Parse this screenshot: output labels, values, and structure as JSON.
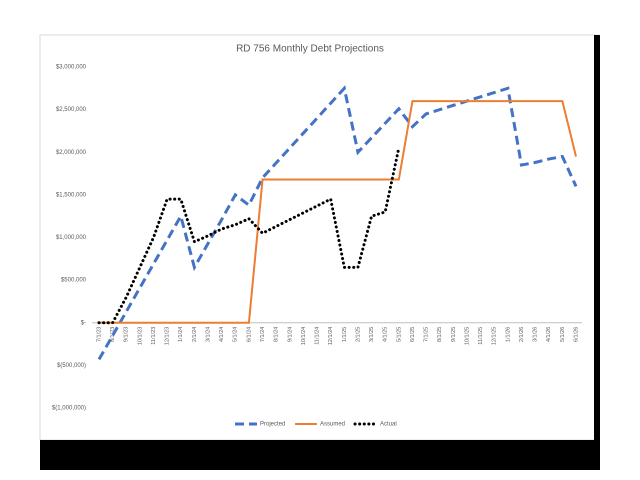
{
  "chart_data": {
    "type": "line",
    "title": "RD 756 Monthly Debt Projections",
    "categories": [
      "7/1/23",
      "8/1/23",
      "9/1/23",
      "10/1/23",
      "11/1/23",
      "12/1/23",
      "1/1/24",
      "2/1/24",
      "3/1/24",
      "4/1/24",
      "5/1/24",
      "6/1/24",
      "7/1/24",
      "8/1/24",
      "9/1/24",
      "10/1/24",
      "11/1/24",
      "12/1/24",
      "1/1/25",
      "2/1/25",
      "3/1/25",
      "4/1/25",
      "5/1/25",
      "6/1/25",
      "7/1/25",
      "8/1/25",
      "9/1/25",
      "10/1/25",
      "11/1/25",
      "12/1/25",
      "1/1/26",
      "2/1/26",
      "3/1/26",
      "4/1/26",
      "5/1/26",
      "6/1/26"
    ],
    "series": [
      {
        "name": "Projected",
        "color": "#4472c4",
        "style": "dashed",
        "values": [
          -430000,
          -150000,
          130000,
          410000,
          690000,
          970000,
          1250000,
          650000,
          930000,
          1210000,
          1500000,
          1380000,
          1700000,
          1875000,
          2050000,
          2225000,
          2400000,
          2575000,
          2750000,
          2000000,
          2170000,
          2340000,
          2510000,
          2300000,
          2450000,
          2500000,
          2550000,
          2600000,
          2650000,
          2700000,
          2750000,
          1850000,
          1880000,
          1920000,
          1950000,
          1600000
        ]
      },
      {
        "name": "Assumed",
        "color": "#ed7d31",
        "style": "solid",
        "values": [
          0,
          0,
          0,
          0,
          0,
          0,
          0,
          0,
          0,
          0,
          0,
          0,
          1680000,
          1680000,
          1680000,
          1680000,
          1680000,
          1680000,
          1680000,
          1680000,
          1680000,
          1680000,
          1680000,
          2600000,
          2600000,
          2600000,
          2600000,
          2600000,
          2600000,
          2600000,
          2600000,
          2600000,
          2600000,
          2600000,
          2600000,
          1950000
        ]
      },
      {
        "name": "Actual",
        "color": "#000000",
        "style": "dotted",
        "values": [
          0,
          0,
          300000,
          650000,
          1000000,
          1450000,
          1450000,
          950000,
          1020000,
          1100000,
          1150000,
          1220000,
          1050000,
          1130000,
          1210000,
          1290000,
          1370000,
          1450000,
          650000,
          650000,
          1250000,
          1300000,
          2050000,
          null,
          null,
          null,
          null,
          null,
          null,
          null,
          null,
          null,
          null,
          null,
          null,
          null
        ]
      }
    ],
    "ylim": [
      -1000000,
      3000000
    ],
    "yticks": [
      {
        "value": -1000000,
        "label": "$(1,000,000)"
      },
      {
        "value": -500000,
        "label": "$(500,000)"
      },
      {
        "value": 0,
        "label": "$-"
      },
      {
        "value": 500000,
        "label": "$500,000"
      },
      {
        "value": 1000000,
        "label": "$1,000,000"
      },
      {
        "value": 1500000,
        "label": "$1,500,000"
      },
      {
        "value": 2000000,
        "label": "$2,000,000"
      },
      {
        "value": 2500000,
        "label": "$2,500,000"
      },
      {
        "value": 3000000,
        "label": "$3,000,000"
      }
    ],
    "grid": false,
    "legend": "bottom"
  }
}
